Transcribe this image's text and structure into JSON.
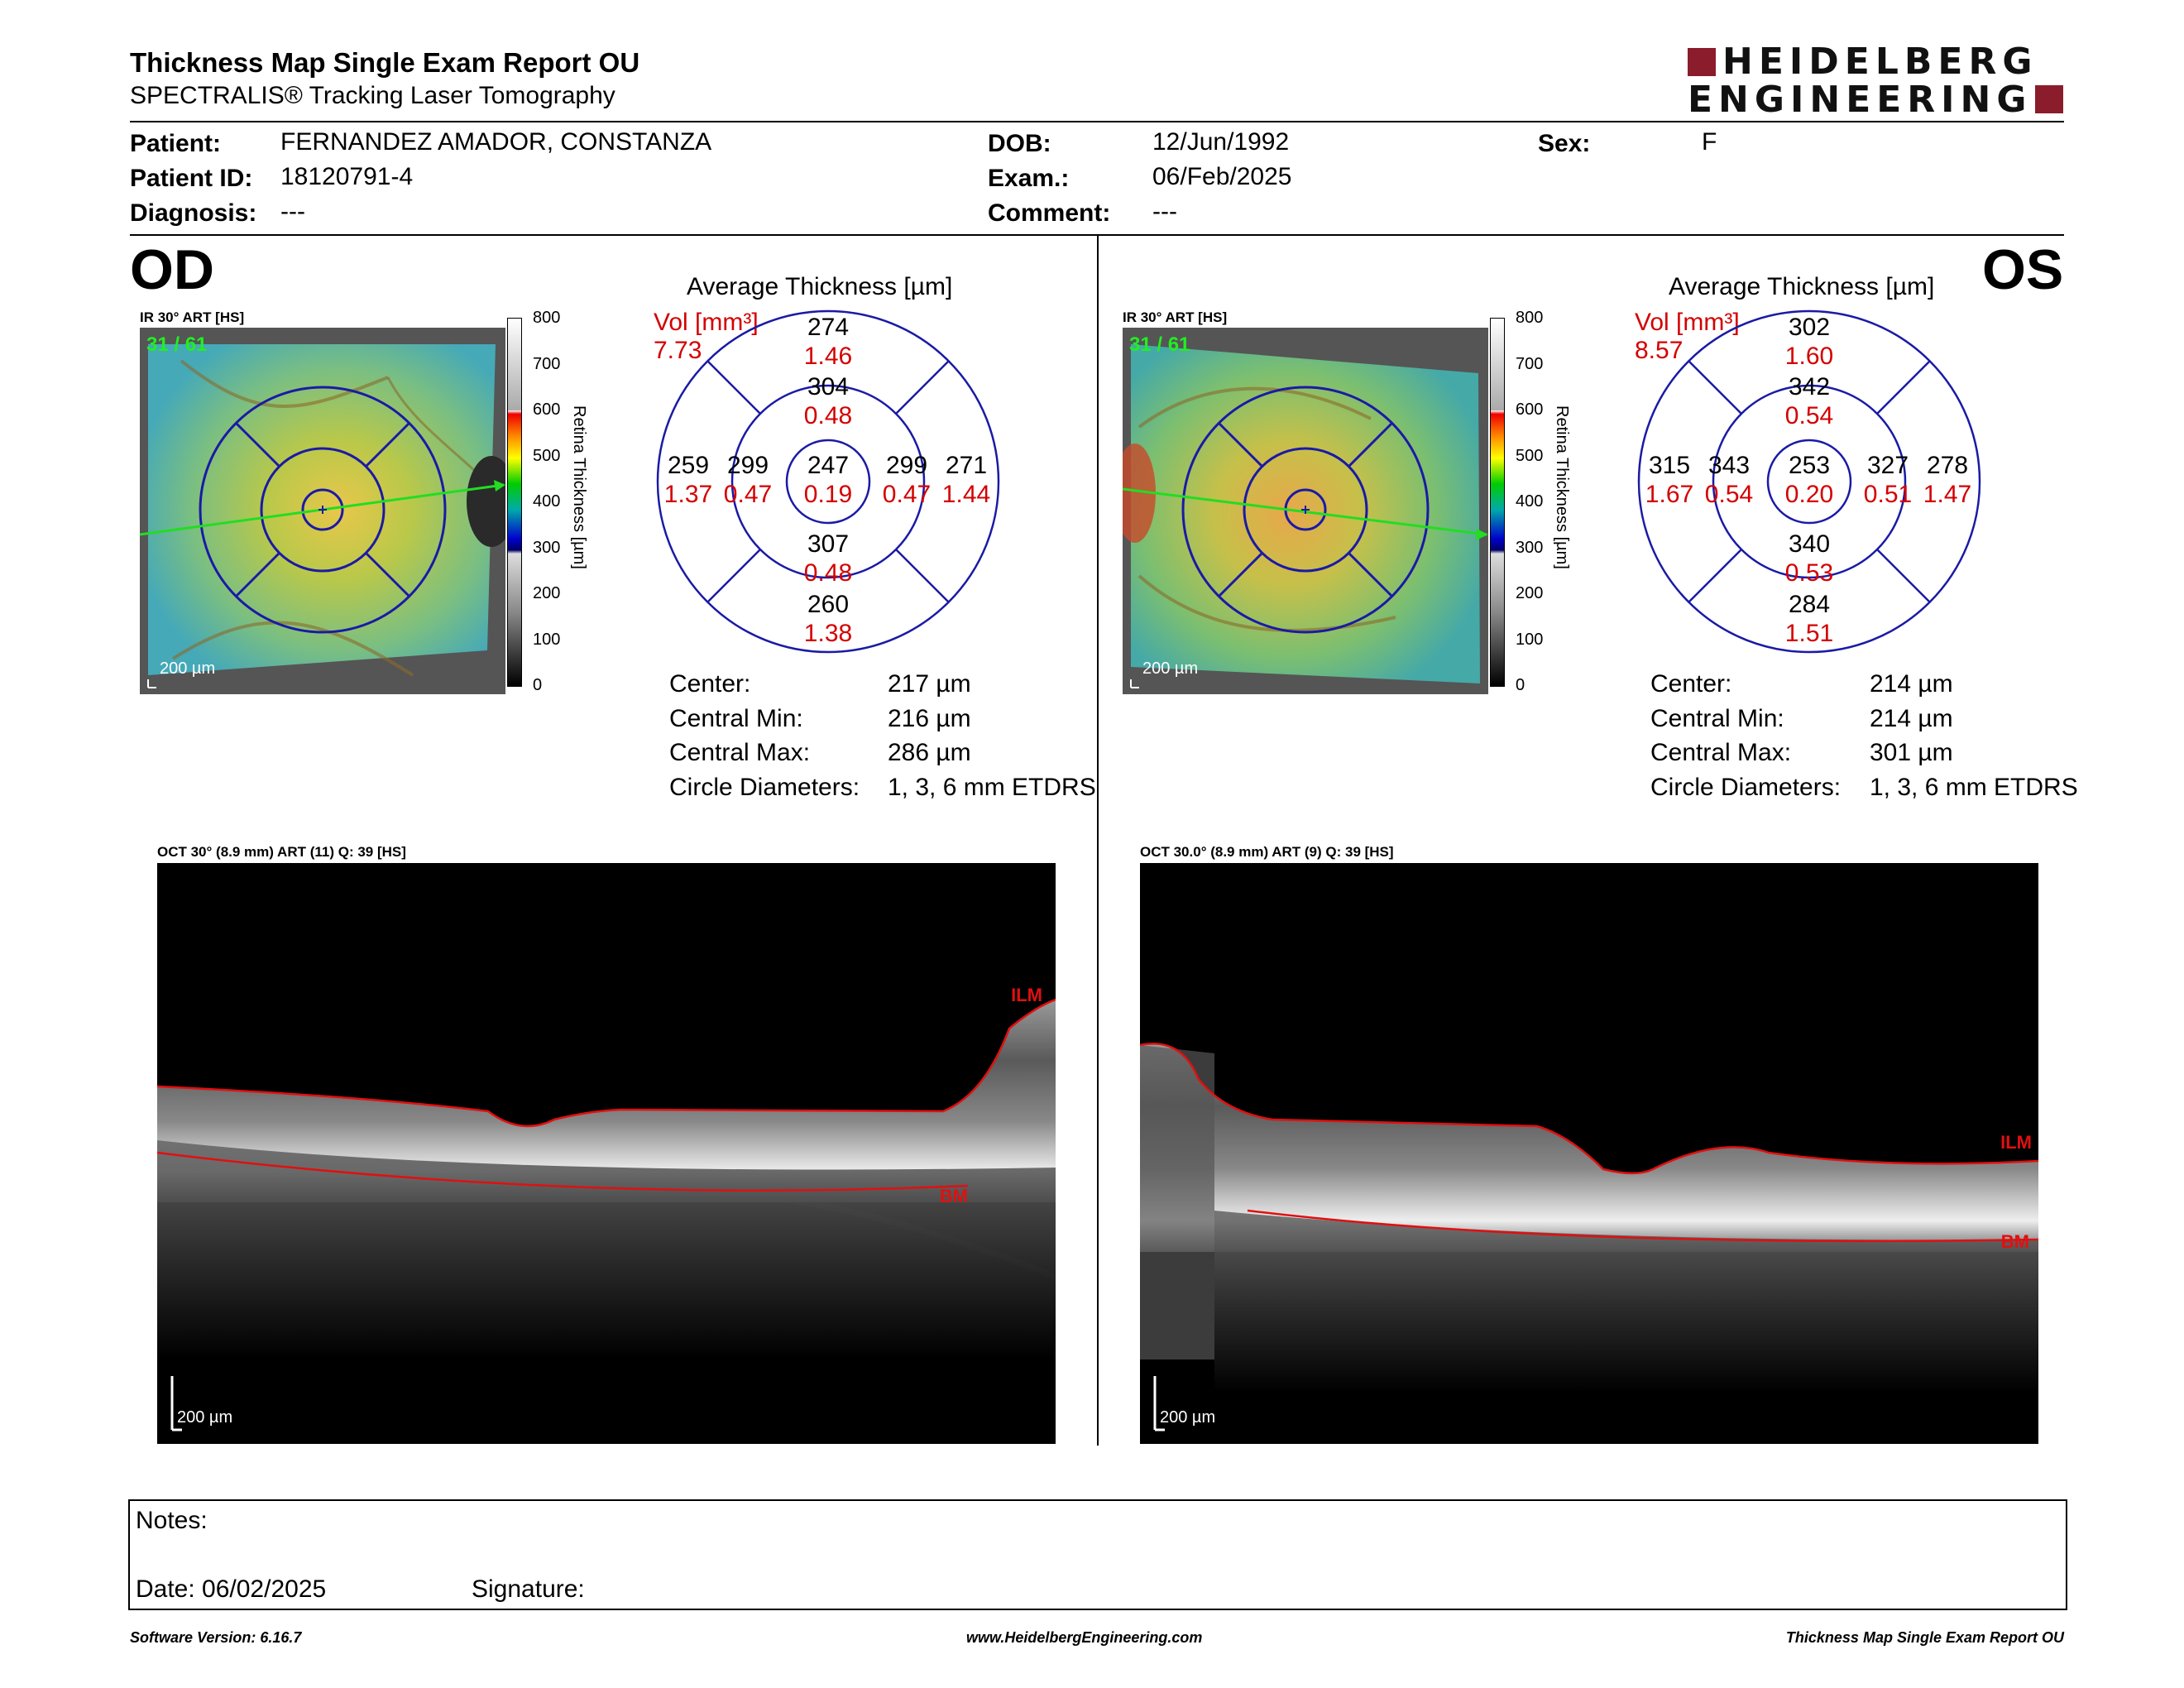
{
  "header": {
    "title": "Thickness Map Single Exam Report OU",
    "subtitle": "SPECTRALIS® Tracking Laser Tomography",
    "logo_line1": "HEIDELBERG",
    "logo_line2": "ENGINEERING"
  },
  "patient": {
    "patient_label": "Patient:",
    "patient_value": "FERNANDEZ AMADOR, CONSTANZA",
    "id_label": "Patient ID:",
    "id_value": "18120791-4",
    "diagnosis_label": "Diagnosis:",
    "diagnosis_value": "---",
    "dob_label": "DOB:",
    "dob_value": "12/Jun/1992",
    "exam_label": "Exam.:",
    "exam_value": "06/Feb/2025",
    "comment_label": "Comment:",
    "comment_value": "---",
    "sex_label": "Sex:",
    "sex_value": "F"
  },
  "od": {
    "eye": "OD",
    "ir_label": "IR 30° ART [HS]",
    "frame": "31 / 61",
    "fundus_scale": "200 µm",
    "avg_title": "Average Thickness [µm]",
    "vol_label": "Vol [mm³]",
    "vol_total": "7.73",
    "sectors": {
      "outer_top": {
        "t": "274",
        "v": "1.46"
      },
      "inner_top": {
        "t": "304",
        "v": "0.48"
      },
      "outer_left": {
        "t": "259",
        "v": "1.37"
      },
      "inner_left": {
        "t": "299",
        "v": "0.47"
      },
      "center": {
        "t": "247",
        "v": "0.19"
      },
      "inner_right": {
        "t": "299",
        "v": "0.47"
      },
      "outer_right": {
        "t": "271",
        "v": "1.44"
      },
      "inner_bottom": {
        "t": "307",
        "v": "0.48"
      },
      "outer_bottom": {
        "t": "260",
        "v": "1.38"
      }
    },
    "stats": {
      "center_label": "Center:",
      "center_value": "217 µm",
      "min_label": "Central Min:",
      "min_value": "216 µm",
      "max_label": "Central Max:",
      "max_value": "286 µm",
      "diam_label": "Circle Diameters:",
      "diam_value": "1, 3, 6 mm ETDRS"
    },
    "oct_label": "OCT 30° (8.9 mm) ART (11) Q: 39 [HS]",
    "oct_scale": "200 µm",
    "ilm": "ILM",
    "bm": "BM"
  },
  "os": {
    "eye": "OS",
    "ir_label": "IR 30° ART [HS]",
    "frame": "31 / 61",
    "fundus_scale": "200 µm",
    "avg_title": "Average Thickness [µm]",
    "vol_label": "Vol [mm³]",
    "vol_total": "8.57",
    "sectors": {
      "outer_top": {
        "t": "302",
        "v": "1.60"
      },
      "inner_top": {
        "t": "342",
        "v": "0.54"
      },
      "outer_left": {
        "t": "315",
        "v": "1.67"
      },
      "inner_left": {
        "t": "343",
        "v": "0.54"
      },
      "center": {
        "t": "253",
        "v": "0.20"
      },
      "inner_right": {
        "t": "327",
        "v": "0.51"
      },
      "outer_right": {
        "t": "278",
        "v": "1.47"
      },
      "inner_bottom": {
        "t": "340",
        "v": "0.53"
      },
      "outer_bottom": {
        "t": "284",
        "v": "1.51"
      }
    },
    "stats": {
      "center_label": "Center:",
      "center_value": "214 µm",
      "min_label": "Central Min:",
      "min_value": "214 µm",
      "max_label": "Central Max:",
      "max_value": "301 µm",
      "diam_label": "Circle Diameters:",
      "diam_value": "1, 3, 6 mm ETDRS"
    },
    "oct_label": "OCT 30.0° (8.9 mm) ART (9) Q: 39 [HS]",
    "oct_scale": "200 µm",
    "ilm": "ILM",
    "bm": "BM"
  },
  "colorbar": {
    "ticks": [
      "800",
      "700",
      "600",
      "500",
      "400",
      "300",
      "200",
      "100",
      "0"
    ],
    "label": "Retina Thickness [µm]"
  },
  "notes": {
    "notes_label": "Notes:",
    "date_label": "Date: 06/02/2025",
    "signature_label": "Signature:"
  },
  "footer": {
    "software": "Software Version: 6.16.7",
    "url": "www.HeidelbergEngineering.com",
    "report": "Thickness Map Single Exam Report OU"
  },
  "colors": {
    "accent_red": "#d40000",
    "logo_red": "#8b1c2c",
    "grid_blue": "#1a1aa6",
    "scan_green": "#22dd22"
  }
}
